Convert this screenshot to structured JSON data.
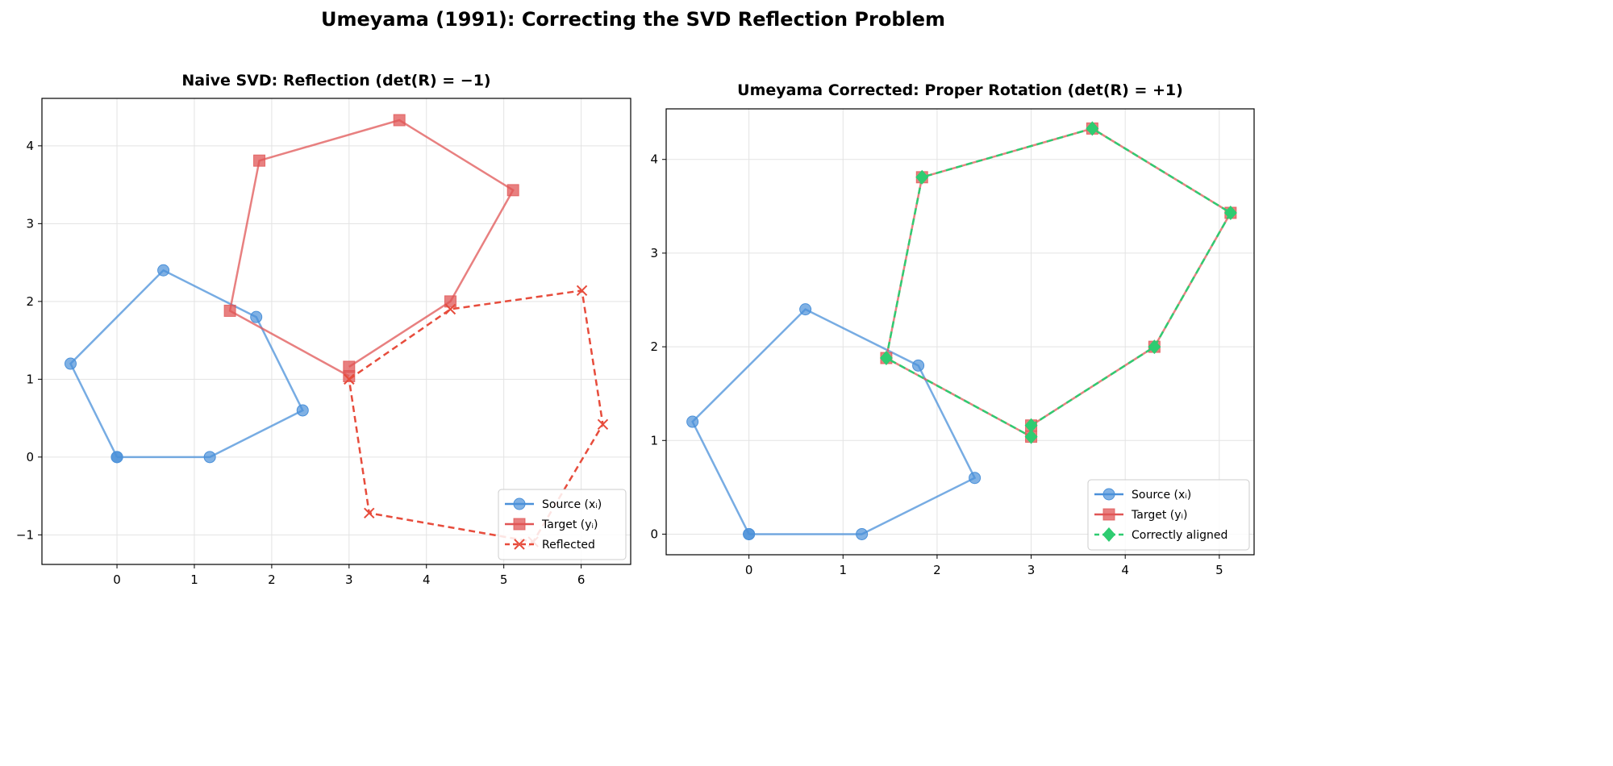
{
  "suptitle": "Umeyama (1991): Correcting the SVD Reflection Problem",
  "chart_data": [
    {
      "type": "line",
      "title": "Naive SVD: Reflection (det(R) = −1)",
      "xlim": [
        -0.97,
        6.64
      ],
      "ylim": [
        -1.38,
        4.61
      ],
      "xticks": [
        0,
        1,
        2,
        3,
        4,
        5,
        6
      ],
      "yticks": [
        -1,
        0,
        1,
        2,
        3,
        4
      ],
      "grid": true,
      "legend": "lower-right",
      "series": [
        {
          "name": "Source (xᵢ)",
          "color": "#4a90d9",
          "marker": "circle",
          "dash": false,
          "x": [
            0,
            1.2,
            2.4,
            1.8,
            0.6,
            -0.6,
            0
          ],
          "y": [
            0,
            0,
            0.6,
            1.8,
            2.4,
            1.2,
            0
          ]
        },
        {
          "name": "Target (yᵢ)",
          "color": "#e05555",
          "marker": "square",
          "dash": false,
          "x": [
            3.0,
            4.31,
            5.12,
            3.65,
            1.84,
            1.46,
            3.0
          ],
          "y": [
            1.16,
            2.0,
            3.43,
            4.33,
            3.81,
            1.88,
            1.04
          ]
        },
        {
          "name": "Reflected",
          "color": "#e74c3c",
          "marker": "x",
          "dash": true,
          "x": [
            3.0,
            4.31,
            6.01,
            6.28,
            5.38,
            3.26,
            3.0
          ],
          "y": [
            1.0,
            1.9,
            2.14,
            0.42,
            -1.09,
            -0.72,
            1.0
          ]
        }
      ]
    },
    {
      "type": "line",
      "title": "Umeyama Corrected: Proper Rotation (det(R) = +1)",
      "xlim": [
        -0.88,
        5.37
      ],
      "ylim": [
        -0.22,
        4.54
      ],
      "xticks": [
        0,
        1,
        2,
        3,
        4,
        5
      ],
      "yticks": [
        0,
        1,
        2,
        3,
        4
      ],
      "grid": true,
      "legend": "lower-right",
      "series": [
        {
          "name": "Source (xᵢ)",
          "color": "#4a90d9",
          "marker": "circle",
          "dash": false,
          "x": [
            0,
            1.2,
            2.4,
            1.8,
            0.6,
            -0.6,
            0
          ],
          "y": [
            0,
            0,
            0.6,
            1.8,
            2.4,
            1.2,
            0
          ]
        },
        {
          "name": "Target (yᵢ)",
          "color": "#e05555",
          "marker": "square",
          "dash": false,
          "x": [
            3.0,
            4.31,
            5.12,
            3.65,
            1.84,
            1.46,
            3.0
          ],
          "y": [
            1.16,
            2.0,
            3.43,
            4.33,
            3.81,
            1.88,
            1.04
          ]
        },
        {
          "name": "Correctly aligned",
          "color": "#2ecc71",
          "marker": "diamond",
          "dash": true,
          "x": [
            3.0,
            4.31,
            5.12,
            3.65,
            1.84,
            1.46,
            3.0
          ],
          "y": [
            1.16,
            2.0,
            3.43,
            4.33,
            3.81,
            1.88,
            1.04
          ]
        }
      ]
    }
  ]
}
